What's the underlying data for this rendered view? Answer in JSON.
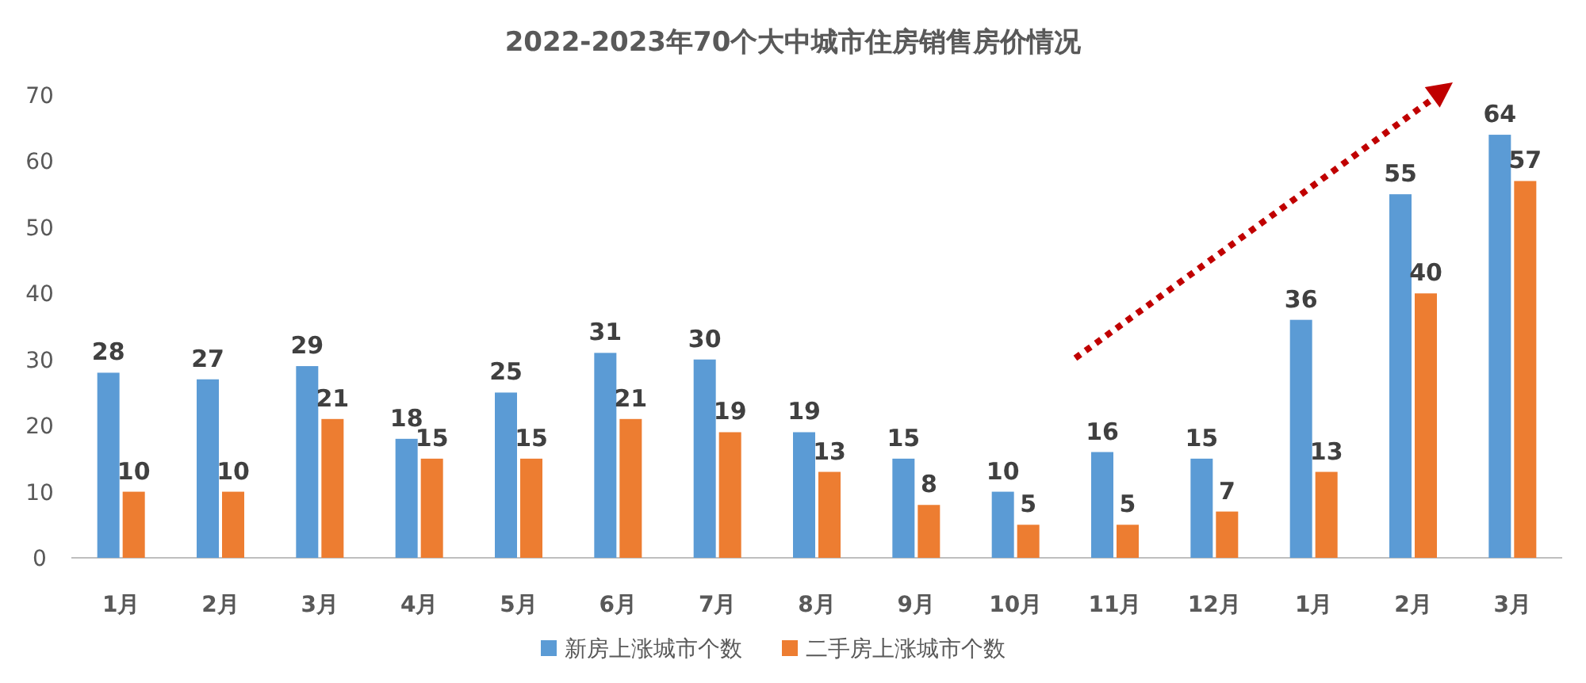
{
  "chart_data": {
    "type": "bar",
    "title": "2022-2023年70个大中城市住房销售房价情况",
    "categories": [
      "1月",
      "2月",
      "3月",
      "4月",
      "5月",
      "6月",
      "7月",
      "8月",
      "9月",
      "10月",
      "11月",
      "12月",
      "1月",
      "2月",
      "3月"
    ],
    "series": [
      {
        "name": "新房上涨城市个数",
        "color": "#5b9bd5",
        "values": [
          28,
          27,
          29,
          18,
          25,
          31,
          30,
          19,
          15,
          10,
          16,
          15,
          36,
          55,
          64
        ]
      },
      {
        "name": "二手房上涨城市个数",
        "color": "#ed7d31",
        "values": [
          10,
          10,
          21,
          15,
          15,
          21,
          19,
          13,
          8,
          5,
          5,
          7,
          13,
          40,
          57
        ]
      }
    ],
    "ylim": [
      0,
      70
    ],
    "yticks": [
      0,
      10,
      20,
      30,
      40,
      50,
      60,
      70
    ],
    "grid": false,
    "legend": "bottom",
    "data_labels": true
  }
}
